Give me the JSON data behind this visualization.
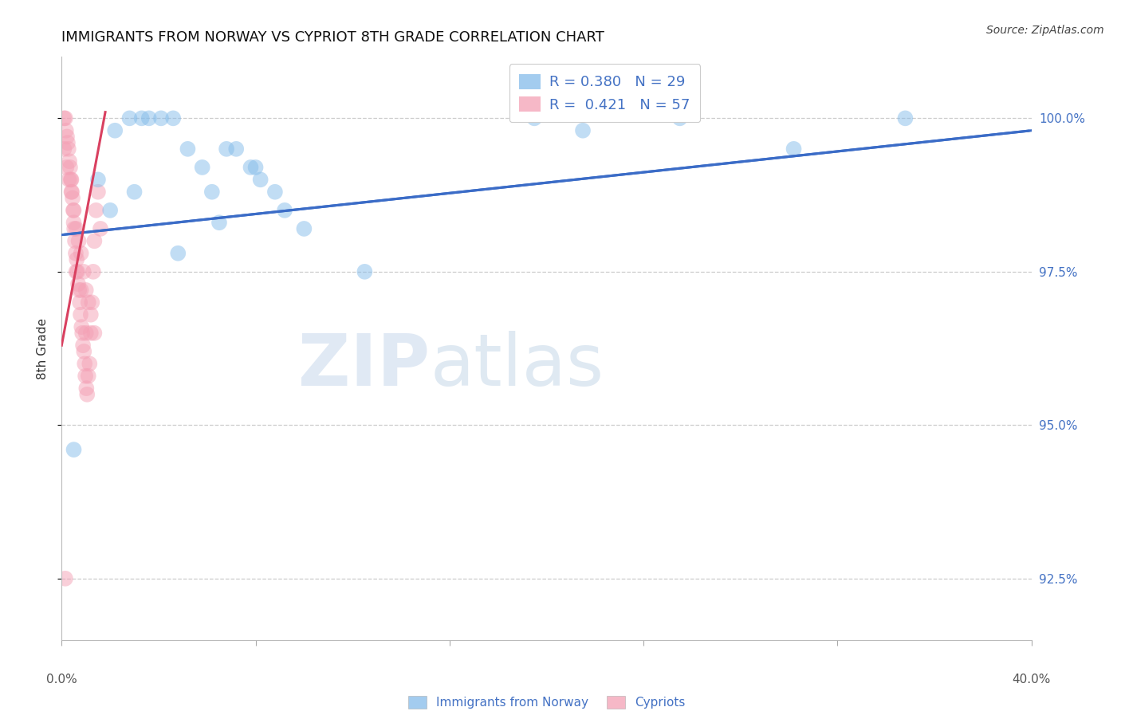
{
  "title": "IMMIGRANTS FROM NORWAY VS CYPRIOT 8TH GRADE CORRELATION CHART",
  "source": "Source: ZipAtlas.com",
  "ylabel_label": "8th Grade",
  "xmin": 0.0,
  "xmax": 40.0,
  "ymin": 91.5,
  "ymax": 101.0,
  "yticks": [
    92.5,
    95.0,
    97.5,
    100.0
  ],
  "xtick_positions": [
    0.0,
    8.0,
    16.0,
    24.0,
    32.0,
    40.0
  ],
  "legend_R_norway": "0.380",
  "legend_N_norway": "29",
  "legend_R_cypriot": "0.421",
  "legend_N_cypriot": "57",
  "norway_color": "#85BCEA",
  "cypriot_color": "#F4A0B5",
  "norway_trend_color": "#3B6CC7",
  "cypriot_trend_color": "#D94060",
  "norway_trend_x0": 0.0,
  "norway_trend_y0": 98.1,
  "norway_trend_x1": 40.0,
  "norway_trend_y1": 99.8,
  "cypriot_trend_x0": 0.0,
  "cypriot_trend_y0": 96.3,
  "cypriot_trend_x1": 1.8,
  "cypriot_trend_y1": 100.1,
  "norway_x": [
    2.2,
    2.8,
    3.3,
    3.6,
    4.1,
    4.6,
    5.2,
    5.8,
    6.2,
    6.8,
    7.2,
    7.8,
    8.2,
    8.8,
    9.2,
    10.0,
    12.5,
    19.5,
    21.5,
    25.5,
    30.2,
    34.8,
    1.5,
    2.0,
    3.0,
    4.8,
    6.5,
    8.0,
    0.5
  ],
  "norway_y": [
    99.8,
    100.0,
    100.0,
    100.0,
    100.0,
    100.0,
    99.5,
    99.2,
    98.8,
    99.5,
    99.5,
    99.2,
    99.0,
    98.8,
    98.5,
    98.2,
    97.5,
    100.0,
    99.8,
    100.0,
    99.5,
    100.0,
    99.0,
    98.5,
    98.8,
    97.8,
    98.3,
    99.2,
    94.6
  ],
  "cypriot_x": [
    0.1,
    0.15,
    0.18,
    0.22,
    0.25,
    0.28,
    0.32,
    0.35,
    0.38,
    0.42,
    0.45,
    0.48,
    0.5,
    0.52,
    0.55,
    0.58,
    0.62,
    0.65,
    0.68,
    0.72,
    0.75,
    0.78,
    0.82,
    0.85,
    0.88,
    0.92,
    0.95,
    0.98,
    1.02,
    1.05,
    1.1,
    1.15,
    1.2,
    1.25,
    1.3,
    1.35,
    1.42,
    1.5,
    1.6,
    0.1,
    0.2,
    0.3,
    0.4,
    0.5,
    0.6,
    0.7,
    0.8,
    0.9,
    1.0,
    1.1,
    1.2,
    1.35,
    0.4,
    0.6,
    0.8,
    1.0,
    0.15
  ],
  "cypriot_y": [
    100.0,
    100.0,
    99.8,
    99.7,
    99.6,
    99.5,
    99.3,
    99.2,
    99.0,
    98.8,
    98.7,
    98.5,
    98.3,
    98.2,
    98.0,
    97.8,
    97.7,
    97.5,
    97.3,
    97.2,
    97.0,
    96.8,
    96.6,
    96.5,
    96.3,
    96.2,
    96.0,
    95.8,
    95.6,
    95.5,
    95.8,
    96.0,
    96.5,
    97.0,
    97.5,
    98.0,
    98.5,
    98.8,
    98.2,
    99.5,
    99.2,
    99.0,
    98.8,
    98.5,
    98.2,
    98.0,
    97.8,
    97.5,
    97.2,
    97.0,
    96.8,
    96.5,
    99.0,
    97.5,
    97.2,
    96.5,
    92.5
  ]
}
